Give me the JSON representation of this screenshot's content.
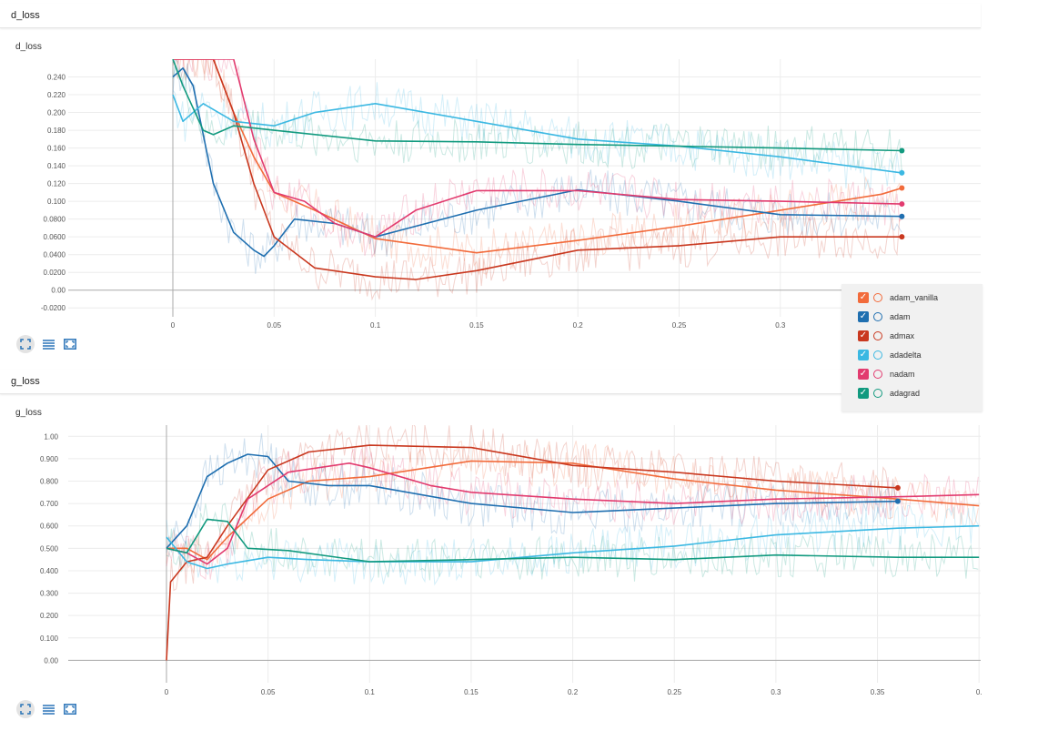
{
  "panels": [
    {
      "header": "d_loss",
      "title": "d_loss",
      "toolbar": [
        "fit-domain-icon",
        "data-selection-icon",
        "log-scale-icon"
      ]
    },
    {
      "header": "g_loss",
      "title": "g_loss",
      "toolbar": [
        "fit-domain-icon",
        "data-selection-icon",
        "log-scale-icon"
      ]
    }
  ],
  "legend": [
    {
      "name": "adam_vanilla",
      "color": "#f26b3b"
    },
    {
      "name": "adam",
      "color": "#1f6fb0"
    },
    {
      "name": "admax",
      "color": "#c9381f"
    },
    {
      "name": "adadelta",
      "color": "#3bb8e2"
    },
    {
      "name": "nadam",
      "color": "#e23b6f"
    },
    {
      "name": "adagrad",
      "color": "#129a7f"
    }
  ],
  "chart_data": [
    {
      "type": "line",
      "title": "d_loss",
      "xlabel": "",
      "ylabel": "",
      "xlim": [
        -0.05,
        0.36
      ],
      "ylim": [
        -0.03,
        0.26
      ],
      "x_ticks": [
        "0",
        "0.05",
        "0.1",
        "0.15",
        "0.2",
        "0.25",
        "0.3"
      ],
      "y_ticks": [
        "0.240",
        "0.220",
        "0.200",
        "0.180",
        "0.160",
        "0.140",
        "0.120",
        "0.100",
        "0.0800",
        "0.0600",
        "0.0400",
        "0.0200",
        "0.00",
        "-0.0200"
      ],
      "grid": true,
      "legend": "right",
      "series": [
        {
          "name": "adam_vanilla",
          "color": "#f26b3b",
          "x": [
            0,
            0.01,
            0.02,
            0.03,
            0.04,
            0.05,
            0.07,
            0.1,
            0.15,
            0.2,
            0.25,
            0.3,
            0.35,
            0.36
          ],
          "y": [
            0.26,
            0.26,
            0.26,
            0.2,
            0.15,
            0.11,
            0.09,
            0.058,
            0.042,
            0.056,
            0.072,
            0.09,
            0.108,
            0.115
          ]
        },
        {
          "name": "adam",
          "color": "#1f6fb0",
          "x": [
            0,
            0.005,
            0.01,
            0.02,
            0.03,
            0.04,
            0.045,
            0.05,
            0.06,
            0.08,
            0.1,
            0.15,
            0.2,
            0.25,
            0.3,
            0.36
          ],
          "y": [
            0.24,
            0.25,
            0.23,
            0.12,
            0.065,
            0.045,
            0.038,
            0.05,
            0.08,
            0.075,
            0.06,
            0.09,
            0.113,
            0.1,
            0.085,
            0.083
          ]
        },
        {
          "name": "admax",
          "color": "#c9381f",
          "x": [
            0,
            0.02,
            0.03,
            0.04,
            0.05,
            0.07,
            0.1,
            0.12,
            0.15,
            0.2,
            0.25,
            0.3,
            0.36
          ],
          "y": [
            0.26,
            0.26,
            0.2,
            0.12,
            0.06,
            0.025,
            0.015,
            0.012,
            0.022,
            0.045,
            0.05,
            0.06,
            0.06
          ]
        },
        {
          "name": "adadelta",
          "color": "#3bb8e2",
          "x": [
            0,
            0.005,
            0.015,
            0.03,
            0.05,
            0.07,
            0.1,
            0.15,
            0.2,
            0.25,
            0.3,
            0.36
          ],
          "y": [
            0.22,
            0.19,
            0.21,
            0.19,
            0.185,
            0.2,
            0.21,
            0.19,
            0.17,
            0.162,
            0.15,
            0.132
          ]
        },
        {
          "name": "nadam",
          "color": "#e23b6f",
          "x": [
            0,
            0.03,
            0.04,
            0.05,
            0.065,
            0.08,
            0.1,
            0.12,
            0.15,
            0.2,
            0.25,
            0.3,
            0.36
          ],
          "y": [
            0.26,
            0.26,
            0.17,
            0.11,
            0.1,
            0.075,
            0.06,
            0.09,
            0.112,
            0.112,
            0.102,
            0.1,
            0.097
          ]
        },
        {
          "name": "adagrad",
          "color": "#129a7f",
          "x": [
            0,
            0.005,
            0.015,
            0.02,
            0.03,
            0.05,
            0.1,
            0.15,
            0.2,
            0.25,
            0.3,
            0.36
          ],
          "y": [
            0.26,
            0.23,
            0.18,
            0.175,
            0.185,
            0.18,
            0.168,
            0.167,
            0.164,
            0.162,
            0.16,
            0.157
          ]
        }
      ]
    },
    {
      "type": "line",
      "title": "g_loss",
      "xlabel": "",
      "ylabel": "",
      "xlim": [
        -0.05,
        0.4
      ],
      "ylim": [
        -0.1,
        1.05
      ],
      "x_ticks": [
        "0",
        "0.05",
        "0.1",
        "0.15",
        "0.2",
        "0.25",
        "0.3",
        "0.35",
        "0."
      ],
      "y_ticks": [
        "1.00",
        "0.900",
        "0.800",
        "0.700",
        "0.600",
        "0.500",
        "0.400",
        "0.300",
        "0.200",
        "0.100",
        "0.00"
      ],
      "grid": true,
      "series": [
        {
          "name": "adam_vanilla",
          "color": "#f26b3b",
          "x": [
            0,
            0.01,
            0.02,
            0.03,
            0.05,
            0.07,
            0.1,
            0.15,
            0.2,
            0.25,
            0.3,
            0.36,
            0.4
          ],
          "y": [
            0.5,
            0.5,
            0.45,
            0.55,
            0.72,
            0.8,
            0.82,
            0.89,
            0.88,
            0.81,
            0.76,
            0.72,
            0.69
          ]
        },
        {
          "name": "adam",
          "color": "#1f6fb0",
          "x": [
            0,
            0.01,
            0.02,
            0.03,
            0.04,
            0.05,
            0.06,
            0.08,
            0.1,
            0.15,
            0.2,
            0.25,
            0.3,
            0.36
          ],
          "y": [
            0.5,
            0.6,
            0.82,
            0.88,
            0.92,
            0.91,
            0.8,
            0.78,
            0.78,
            0.7,
            0.66,
            0.68,
            0.7,
            0.71
          ]
        },
        {
          "name": "admax",
          "color": "#c9381f",
          "x": [
            0,
            0.002,
            0.01,
            0.02,
            0.03,
            0.05,
            0.07,
            0.1,
            0.15,
            0.2,
            0.25,
            0.3,
            0.36
          ],
          "y": [
            0.0,
            0.35,
            0.44,
            0.46,
            0.6,
            0.85,
            0.93,
            0.96,
            0.95,
            0.87,
            0.84,
            0.8,
            0.77
          ]
        },
        {
          "name": "adadelta",
          "color": "#3bb8e2",
          "x": [
            0,
            0.01,
            0.02,
            0.03,
            0.05,
            0.07,
            0.1,
            0.15,
            0.2,
            0.25,
            0.3,
            0.36,
            0.4
          ],
          "y": [
            0.55,
            0.44,
            0.41,
            0.43,
            0.46,
            0.45,
            0.44,
            0.44,
            0.48,
            0.51,
            0.56,
            0.59,
            0.6
          ]
        },
        {
          "name": "nadam",
          "color": "#e23b6f",
          "x": [
            0,
            0.01,
            0.02,
            0.03,
            0.04,
            0.06,
            0.09,
            0.1,
            0.13,
            0.15,
            0.2,
            0.25,
            0.3,
            0.36,
            0.4
          ],
          "y": [
            0.5,
            0.48,
            0.43,
            0.5,
            0.72,
            0.84,
            0.88,
            0.86,
            0.78,
            0.75,
            0.72,
            0.7,
            0.72,
            0.73,
            0.74
          ]
        },
        {
          "name": "adagrad",
          "color": "#129a7f",
          "x": [
            0,
            0.01,
            0.02,
            0.03,
            0.04,
            0.06,
            0.1,
            0.15,
            0.2,
            0.25,
            0.3,
            0.36,
            0.4
          ],
          "y": [
            0.5,
            0.48,
            0.63,
            0.62,
            0.5,
            0.49,
            0.44,
            0.45,
            0.46,
            0.45,
            0.47,
            0.46,
            0.46
          ]
        }
      ]
    }
  ]
}
